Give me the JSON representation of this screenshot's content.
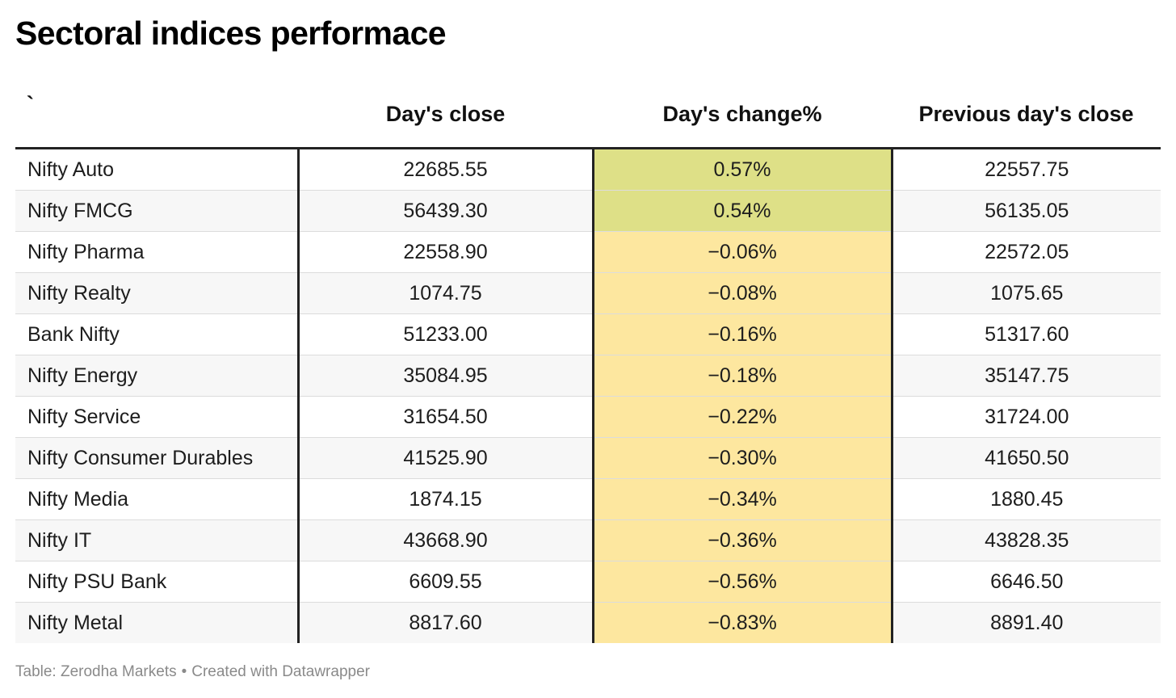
{
  "title": "Sectoral indices performace",
  "colors": {
    "positive_cell": "#dee087",
    "negative_cell": "#fde79f",
    "rule": "#222222",
    "footer_text": "#8a8a8a"
  },
  "chart_data": {
    "type": "table",
    "title": "Sectoral indices performace",
    "columns": [
      "`",
      "Day's close",
      "Day's change%",
      "Previous day's close"
    ],
    "rows": [
      {
        "name": "Nifty Auto",
        "close": "22685.55",
        "change": "0.57%",
        "change_value": 0.57,
        "prev": "22557.75"
      },
      {
        "name": "Nifty FMCG",
        "close": "56439.30",
        "change": "0.54%",
        "change_value": 0.54,
        "prev": "56135.05"
      },
      {
        "name": "Nifty Pharma",
        "close": "22558.90",
        "change": "−0.06%",
        "change_value": -0.06,
        "prev": "22572.05"
      },
      {
        "name": "Nifty Realty",
        "close": "1074.75",
        "change": "−0.08%",
        "change_value": -0.08,
        "prev": "1075.65"
      },
      {
        "name": "Bank Nifty",
        "close": "51233.00",
        "change": "−0.16%",
        "change_value": -0.16,
        "prev": "51317.60"
      },
      {
        "name": "Nifty Energy",
        "close": "35084.95",
        "change": "−0.18%",
        "change_value": -0.18,
        "prev": "35147.75"
      },
      {
        "name": "Nifty Service",
        "close": "31654.50",
        "change": "−0.22%",
        "change_value": -0.22,
        "prev": "31724.00"
      },
      {
        "name": "Nifty Consumer Durables",
        "close": "41525.90",
        "change": "−0.30%",
        "change_value": -0.3,
        "prev": "41650.50"
      },
      {
        "name": "Nifty Media",
        "close": "1874.15",
        "change": "−0.34%",
        "change_value": -0.34,
        "prev": "1880.45"
      },
      {
        "name": "Nifty IT",
        "close": "43668.90",
        "change": "−0.36%",
        "change_value": -0.36,
        "prev": "43828.35"
      },
      {
        "name": "Nifty PSU Bank",
        "close": "6609.55",
        "change": "−0.56%",
        "change_value": -0.56,
        "prev": "6646.50"
      },
      {
        "name": "Nifty Metal",
        "close": "8817.60",
        "change": "−0.83%",
        "change_value": -0.83,
        "prev": "8891.40"
      }
    ]
  },
  "footer": {
    "source": "Table: Zerodha Markets",
    "separator": "•",
    "credit": "Created with Datawrapper"
  }
}
